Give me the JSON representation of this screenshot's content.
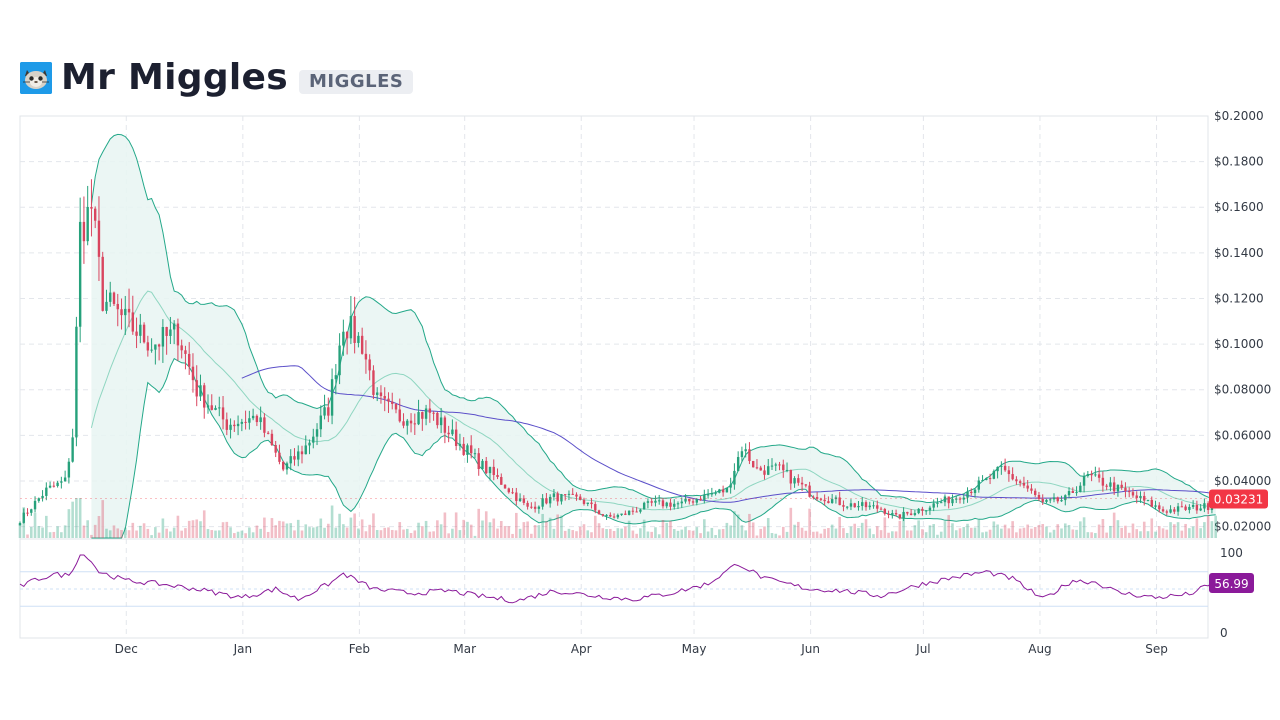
{
  "header": {
    "title": "Mr Miggles",
    "ticker": "MIGGLES",
    "logo_icon": "cat-face-icon"
  },
  "chart_data": {
    "type": "candlestick",
    "price_axis": {
      "ylim": [
        0.015,
        0.2
      ],
      "ticks": [
        0.2,
        0.18,
        0.16,
        0.14,
        0.12,
        0.1,
        0.08,
        0.06,
        0.04,
        0.02
      ],
      "tick_labels": [
        "$0.2000",
        "$0.1800",
        "$0.1600",
        "$0.1400",
        "$0.1200",
        "$0.1000",
        "$0.08000",
        "$0.06000",
        "$0.04000",
        "$0.02000"
      ]
    },
    "time_axis": {
      "labels": [
        "Dec",
        "Jan",
        "Feb",
        "Mar",
        "Apr",
        "May",
        "Jun",
        "Jul",
        "Aug",
        "Sep"
      ],
      "range": [
        "Nov 3",
        "Sep 17"
      ]
    },
    "last_price_label": "0.03231",
    "key_points": [
      {
        "date": "Nov 3",
        "price": 0.023
      },
      {
        "date": "Nov 10",
        "price": 0.036
      },
      {
        "date": "Nov 15",
        "price": 0.04
      },
      {
        "date": "Nov 17",
        "price": 0.06
      },
      {
        "date": "Nov 19",
        "price": 0.15
      },
      {
        "date": "Nov 22",
        "price": 0.16
      },
      {
        "date": "Nov 25",
        "price": 0.12
      },
      {
        "date": "Dec 1",
        "price": 0.11
      },
      {
        "date": "Dec 8",
        "price": 0.1
      },
      {
        "date": "Dec 15",
        "price": 0.105
      },
      {
        "date": "Dec 20",
        "price": 0.08
      },
      {
        "date": "Dec 28",
        "price": 0.065
      },
      {
        "date": "Jan 5",
        "price": 0.068
      },
      {
        "date": "Jan 12",
        "price": 0.045
      },
      {
        "date": "Jan 18",
        "price": 0.055
      },
      {
        "date": "Jan 24",
        "price": 0.072
      },
      {
        "date": "Jan 28",
        "price": 0.11
      },
      {
        "date": "Feb 2",
        "price": 0.1
      },
      {
        "date": "Feb 6",
        "price": 0.075
      },
      {
        "date": "Feb 12",
        "price": 0.068
      },
      {
        "date": "Feb 20",
        "price": 0.07
      },
      {
        "date": "Feb 27",
        "price": 0.058
      },
      {
        "date": "Mar 5",
        "price": 0.048
      },
      {
        "date": "Mar 12",
        "price": 0.038
      },
      {
        "date": "Mar 18",
        "price": 0.028
      },
      {
        "date": "Mar 25",
        "price": 0.033
      },
      {
        "date": "Apr 1",
        "price": 0.032
      },
      {
        "date": "Apr 8",
        "price": 0.024
      },
      {
        "date": "Apr 12",
        "price": 0.025
      },
      {
        "date": "Apr 20",
        "price": 0.03
      },
      {
        "date": "Apr 28",
        "price": 0.03
      },
      {
        "date": "May 5",
        "price": 0.034
      },
      {
        "date": "May 10",
        "price": 0.036
      },
      {
        "date": "May 14",
        "price": 0.055
      },
      {
        "date": "May 18",
        "price": 0.045
      },
      {
        "date": "May 24",
        "price": 0.045
      },
      {
        "date": "Jun 1",
        "price": 0.035
      },
      {
        "date": "Jun 10",
        "price": 0.03
      },
      {
        "date": "Jun 20",
        "price": 0.028
      },
      {
        "date": "Jun 24",
        "price": 0.024
      },
      {
        "date": "Jul 1",
        "price": 0.028
      },
      {
        "date": "Jul 10",
        "price": 0.033
      },
      {
        "date": "Jul 18",
        "price": 0.04
      },
      {
        "date": "Jul 22",
        "price": 0.045
      },
      {
        "date": "Jul 28",
        "price": 0.038
      },
      {
        "date": "Aug 2",
        "price": 0.03
      },
      {
        "date": "Aug 8",
        "price": 0.032
      },
      {
        "date": "Aug 14",
        "price": 0.042
      },
      {
        "date": "Aug 20",
        "price": 0.038
      },
      {
        "date": "Aug 28",
        "price": 0.032
      },
      {
        "date": "Sep 3",
        "price": 0.027
      },
      {
        "date": "Sep 10",
        "price": 0.028
      },
      {
        "date": "Sep 15",
        "price": 0.029
      },
      {
        "date": "Sep 17",
        "price": 0.03231
      }
    ],
    "rsi": {
      "ylim": [
        0,
        100
      ],
      "tick_labels": [
        "100",
        "0"
      ],
      "guides": [
        70,
        50,
        30
      ],
      "last_value_label": "56.99",
      "key_points": [
        {
          "date": "Nov 3",
          "value": 53
        },
        {
          "date": "Nov 8",
          "value": 62
        },
        {
          "date": "Nov 12",
          "value": 67
        },
        {
          "date": "Nov 16",
          "value": 66
        },
        {
          "date": "Nov 19",
          "value": 90
        },
        {
          "date": "Nov 21",
          "value": 88
        },
        {
          "date": "Nov 24",
          "value": 70
        },
        {
          "date": "Dec 1",
          "value": 60
        },
        {
          "date": "Dec 10",
          "value": 56
        },
        {
          "date": "Dec 20",
          "value": 50
        },
        {
          "date": "Jan 1",
          "value": 40
        },
        {
          "date": "Jan 10",
          "value": 50
        },
        {
          "date": "Jan 16",
          "value": 38
        },
        {
          "date": "Jan 25",
          "value": 58
        },
        {
          "date": "Jan 28",
          "value": 68
        },
        {
          "date": "Feb 5",
          "value": 50
        },
        {
          "date": "Feb 15",
          "value": 45
        },
        {
          "date": "Feb 25",
          "value": 48
        },
        {
          "date": "Mar 5",
          "value": 42
        },
        {
          "date": "Mar 15",
          "value": 36
        },
        {
          "date": "Mar 25",
          "value": 48
        },
        {
          "date": "Apr 5",
          "value": 42
        },
        {
          "date": "Apr 15",
          "value": 38
        },
        {
          "date": "Apr 25",
          "value": 45
        },
        {
          "date": "May 5",
          "value": 56
        },
        {
          "date": "May 13",
          "value": 80
        },
        {
          "date": "May 20",
          "value": 62
        },
        {
          "date": "Jun 1",
          "value": 50
        },
        {
          "date": "Jun 10",
          "value": 48
        },
        {
          "date": "Jun 20",
          "value": 42
        },
        {
          "date": "Jul 1",
          "value": 56
        },
        {
          "date": "Jul 10",
          "value": 64
        },
        {
          "date": "Jul 18",
          "value": 70
        },
        {
          "date": "Jul 25",
          "value": 62
        },
        {
          "date": "Aug 2",
          "value": 38
        },
        {
          "date": "Aug 10",
          "value": 60
        },
        {
          "date": "Aug 16",
          "value": 58
        },
        {
          "date": "Aug 22",
          "value": 46
        },
        {
          "date": "Sep 1",
          "value": 40
        },
        {
          "date": "Sep 10",
          "value": 44
        },
        {
          "date": "Sep 14",
          "value": 52
        },
        {
          "date": "Sep 17",
          "value": 56.99
        }
      ]
    },
    "colors": {
      "up": "#26a17b",
      "down": "#d9455f",
      "bands": "#23a889",
      "band_fill": "#e8f5f2",
      "moving_average": "#5b4fc9",
      "rsi": "#8b1a9a",
      "last_price_bg": "#f23645",
      "rsi_badge_bg": "#8b1a9a",
      "grid": "#e3e6eb"
    }
  }
}
